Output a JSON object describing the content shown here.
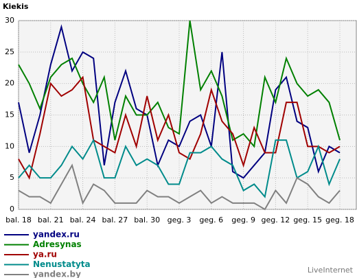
{
  "chart_data": {
    "type": "line",
    "title": "Kiekis",
    "credit": "LiveInternet",
    "categories": [
      "bal. 18",
      null,
      null,
      "bal. 21",
      null,
      null,
      "bal. 24",
      null,
      null,
      "bal. 27",
      null,
      null,
      "bal. 30",
      null,
      null,
      "geg. 3",
      null,
      null,
      "geg. 6",
      null,
      null,
      "geg. 9",
      null,
      null,
      "geg. 12",
      null,
      null,
      "geg. 15",
      null,
      null,
      "geg. 18"
    ],
    "ylim": [
      0,
      30
    ],
    "yticks": [
      0,
      5,
      10,
      15,
      20,
      25,
      30
    ],
    "grid": true,
    "series": [
      {
        "name": "yandex.ru",
        "color": "#000080",
        "values": [
          17,
          9,
          15,
          23,
          29,
          22,
          25,
          24,
          7,
          17,
          22,
          16,
          15,
          7,
          11,
          10,
          14,
          15,
          10,
          25,
          6,
          5,
          7,
          9,
          19,
          21,
          14,
          13,
          6,
          10,
          9
        ]
      },
      {
        "name": "Adresynas",
        "color": "#008000",
        "values": [
          23,
          20,
          16,
          21,
          23,
          24,
          20,
          17,
          21,
          11,
          18,
          15,
          15,
          17,
          13,
          12,
          30,
          19,
          22,
          18,
          11,
          12,
          10,
          21,
          17,
          24,
          20,
          18,
          19,
          17,
          11
        ]
      },
      {
        "name": "ya.ru",
        "color": "#a00000",
        "values": [
          8,
          5,
          12,
          20,
          18,
          19,
          21,
          11,
          10,
          9,
          15,
          10,
          18,
          11,
          15,
          9,
          8,
          12,
          19,
          14,
          12,
          7,
          13,
          9,
          9,
          17,
          17,
          10,
          10,
          9,
          10
        ]
      },
      {
        "name": "Nenustatyta",
        "color": "#008b8b",
        "values": [
          5,
          7,
          5,
          5,
          7,
          10,
          8,
          11,
          5,
          5,
          10,
          7,
          8,
          7,
          4,
          4,
          9,
          9,
          10,
          8,
          7,
          3,
          4,
          2,
          11,
          11,
          5,
          6,
          10,
          4,
          8
        ]
      },
      {
        "name": "yandex.by",
        "color": "#808080",
        "values": [
          3,
          2,
          2,
          1,
          4,
          7,
          1,
          4,
          3,
          1,
          1,
          1,
          3,
          2,
          2,
          1,
          2,
          3,
          1,
          2,
          1,
          1,
          1,
          0,
          3,
          1,
          5,
          4,
          2,
          1,
          3
        ]
      }
    ]
  }
}
